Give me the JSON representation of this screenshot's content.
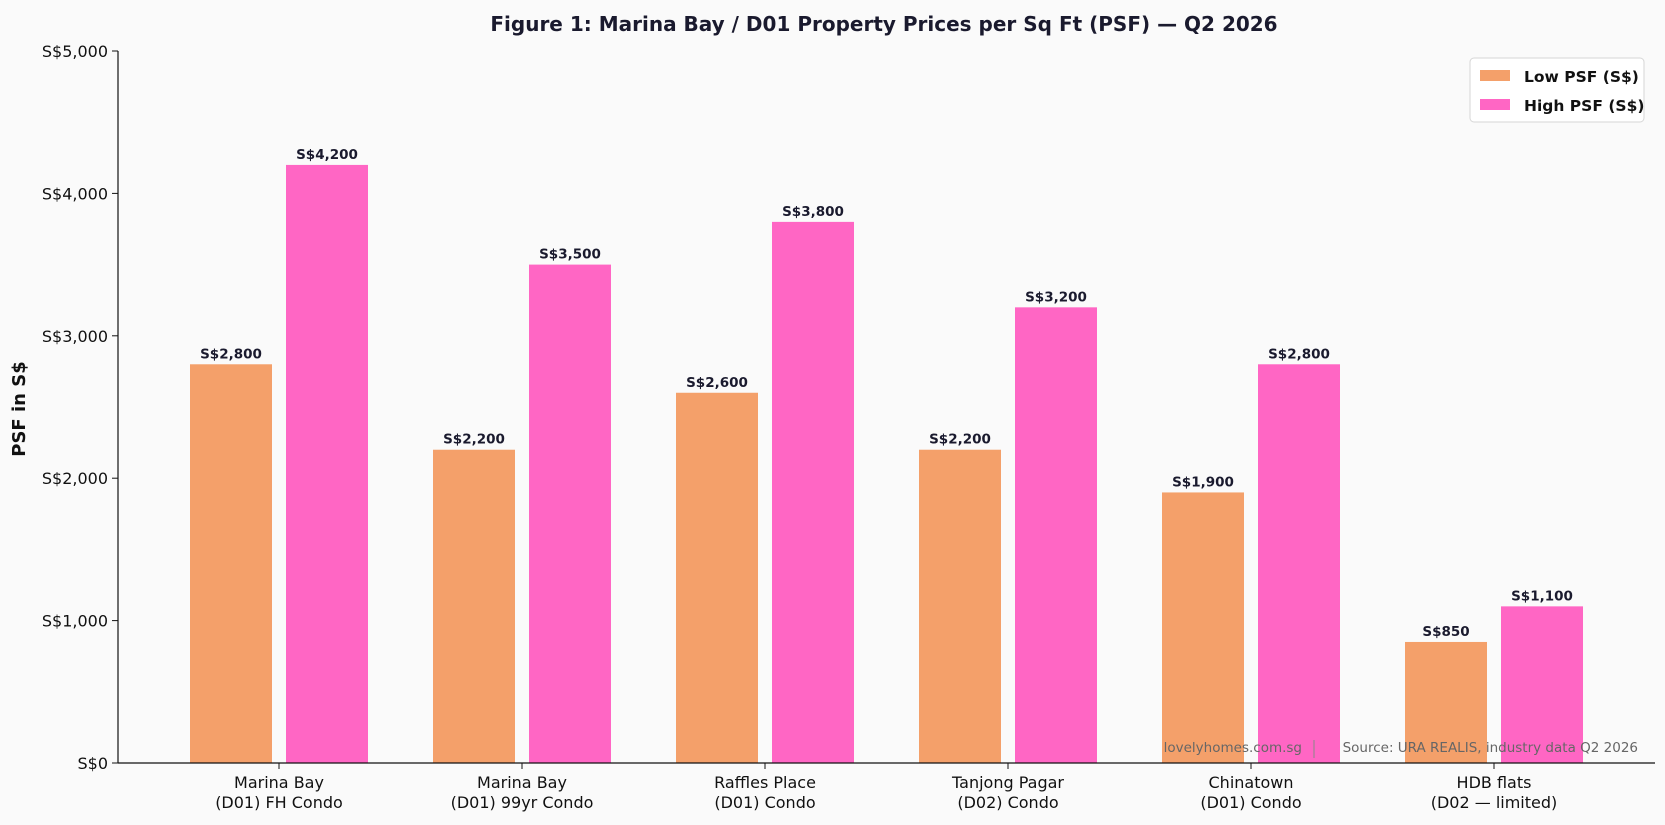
{
  "chart_data": {
    "type": "bar",
    "title": "Figure 1: Marina Bay / D01 Property Prices per Sq Ft (PSF) — Q2 2026",
    "xlabel": "",
    "ylabel": "PSF in S$",
    "ylim": [
      0,
      5000
    ],
    "yticks": [
      0,
      1000,
      2000,
      3000,
      4000,
      5000
    ],
    "ytick_labels": [
      "S$0",
      "S$1,000",
      "S$2,000",
      "S$3,000",
      "S$4,000",
      "S$5,000"
    ],
    "grid": false,
    "legend_position": "top-right",
    "categories": [
      [
        "Marina Bay",
        "(D01) FH Condo"
      ],
      [
        "Marina Bay",
        "(D01) 99yr Condo"
      ],
      [
        "Raffles Place",
        "(D01) Condo"
      ],
      [
        "Tanjong Pagar",
        "(D02) Condo"
      ],
      [
        "Chinatown",
        "(D01) Condo"
      ],
      [
        "HDB flats",
        "(D02 — limited)"
      ]
    ],
    "series": [
      {
        "name": "Low PSF (S$)",
        "color": "#f4a06a",
        "values": [
          2800,
          2200,
          2600,
          2200,
          1900,
          850
        ],
        "labels": [
          "S$2,800",
          "S$2,200",
          "S$2,600",
          "S$2,200",
          "S$1,900",
          "S$850"
        ]
      },
      {
        "name": "High PSF (S$)",
        "color": "#ff66c4",
        "values": [
          4200,
          3500,
          3800,
          3200,
          2800,
          1100
        ],
        "labels": [
          "S$4,200",
          "S$3,500",
          "S$3,800",
          "S$3,200",
          "S$2,800",
          "S$1,100"
        ]
      }
    ],
    "footer": {
      "site": "lovelyhomes.com.sg",
      "source": "Source: URA REALIS, industry data Q2 2026"
    }
  }
}
